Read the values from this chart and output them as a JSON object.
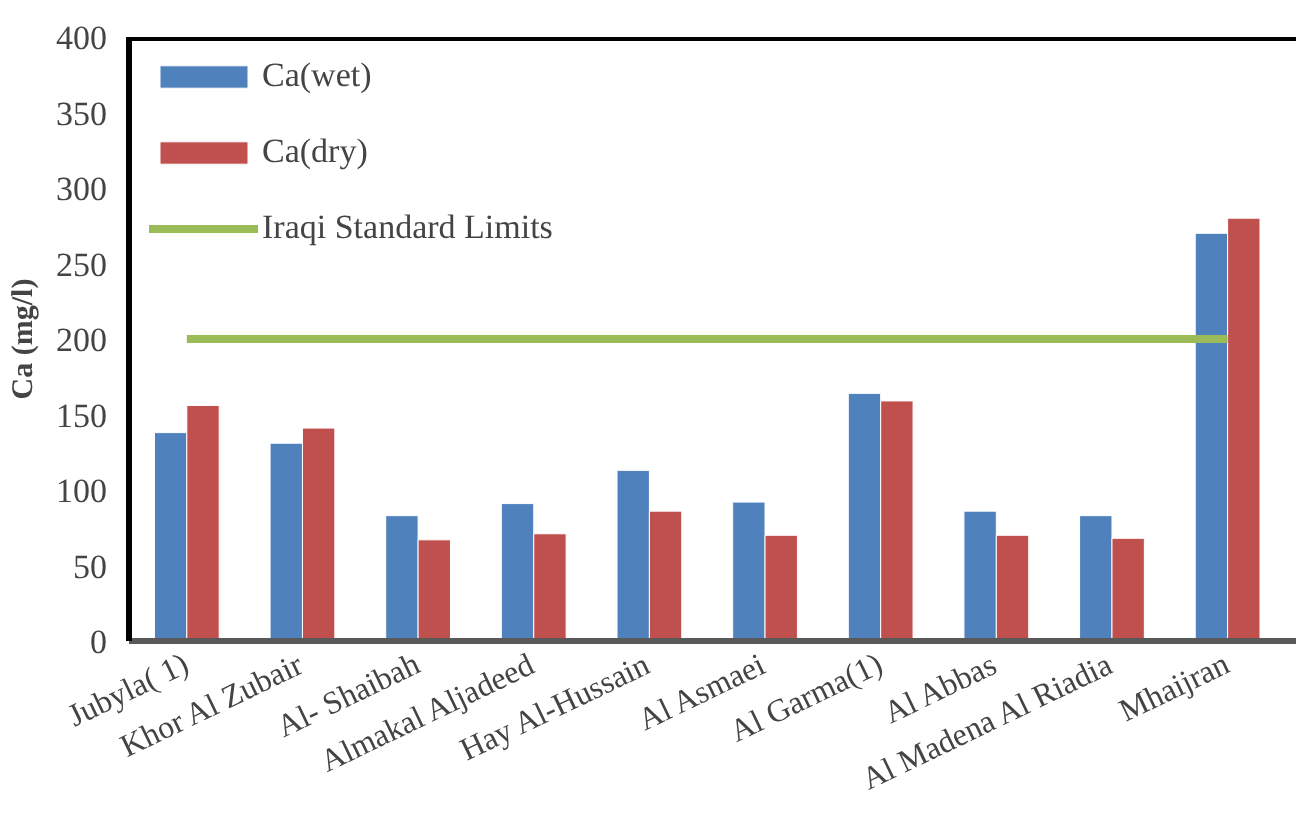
{
  "chart_data": {
    "type": "bar",
    "ylabel": "Ca (mg/l)",
    "categories": [
      "Jubyla( 1)",
      "Khor Al Zubair",
      "Al- Shaibah",
      "Almakal Aljadeed",
      "Hay Al-Hussain",
      "Al Asmaei",
      "Al Garma(1)",
      "Al Abbas",
      "Al Madena Al Riadia",
      "Mhaijran"
    ],
    "series": [
      {
        "name": "Ca(wet)",
        "color": "#4f81bd",
        "values": [
          138,
          131,
          83,
          91,
          113,
          92,
          164,
          86,
          83,
          270
        ]
      },
      {
        "name": "Ca(dry)",
        "color": "#c0504d",
        "values": [
          156,
          141,
          67,
          71,
          86,
          70,
          159,
          70,
          68,
          280
        ]
      },
      {
        "name": "Iraqi Standard Limits",
        "color": "#9bbb59",
        "type": "line",
        "values": [
          200,
          200,
          200,
          200,
          200,
          200,
          200,
          200,
          200,
          200
        ]
      }
    ],
    "ylim": [
      0,
      400
    ],
    "yticks": [
      0,
      50,
      100,
      150,
      200,
      250,
      300,
      350,
      400
    ],
    "grid": false,
    "legend": "top left"
  }
}
